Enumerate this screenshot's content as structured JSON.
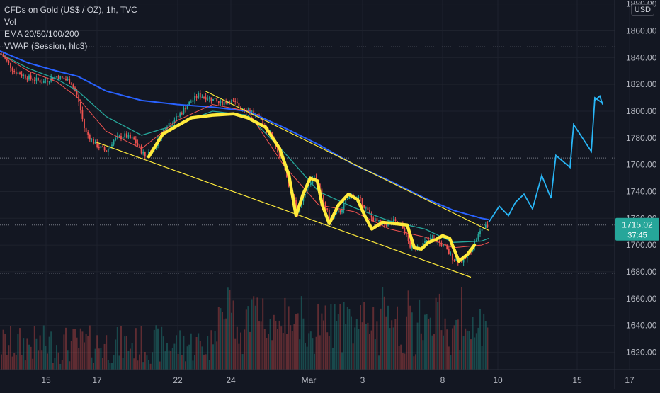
{
  "legend": {
    "symbol": "CFDs on Gold (US$ / OZ), 1h, TVC",
    "volume": "Vol",
    "ema": "EMA 20/50/100/200",
    "vwap": "VWAP (Session, hlc3)"
  },
  "currency_button": "USD",
  "price_tag": {
    "price": "1715.02",
    "countdown": "37:45",
    "color": "#26a69a"
  },
  "colors": {
    "background": "#131722",
    "up": "#26a69a",
    "down": "#ef5350",
    "yellow": "#ffeb3b",
    "blue_line": "#2962ff",
    "teal_line": "#26a69a",
    "red_line": "#ef5350",
    "projection": "#29b6f6"
  },
  "chart_data": {
    "type": "line",
    "y_ticks": [
      1620,
      1640,
      1660,
      1680,
      1700,
      1720,
      1740,
      1760,
      1780,
      1800,
      1820,
      1840,
      1860,
      1880
    ],
    "ylim": [
      1607,
      1883
    ],
    "x_ticks": [
      "15",
      "17",
      "22",
      "24",
      "Mar",
      "3",
      "8",
      "10",
      "15",
      "17"
    ],
    "grid": true,
    "horizontal_levels": [
      1848,
      1765,
      1715,
      1679
    ],
    "series": [
      {
        "values": [
          [
            0,
            1844
          ],
          [
            20,
            1830
          ],
          [
            40,
            1825
          ],
          [
            60,
            1822
          ],
          [
            80,
            1826
          ],
          [
            100,
            1822
          ],
          [
            110,
            1810
          ],
          [
            120,
            1785
          ],
          [
            135,
            1775
          ],
          [
            150,
            1770
          ],
          [
            160,
            1778
          ],
          [
            175,
            1782
          ],
          [
            190,
            1778
          ],
          [
            205,
            1766
          ],
          [
            220,
            1775
          ],
          [
            235,
            1790
          ],
          [
            250,
            1795
          ],
          [
            265,
            1805
          ],
          [
            280,
            1812
          ],
          [
            295,
            1810
          ],
          [
            310,
            1806
          ],
          [
            325,
            1808
          ],
          [
            340,
            1803
          ],
          [
            355,
            1800
          ],
          [
            370,
            1792
          ],
          [
            385,
            1780
          ],
          [
            400,
            1760
          ],
          [
            410,
            1740
          ],
          [
            420,
            1725
          ],
          [
            435,
            1745
          ],
          [
            445,
            1752
          ],
          [
            455,
            1735
          ],
          [
            465,
            1720
          ],
          [
            480,
            1725
          ],
          [
            495,
            1738
          ],
          [
            510,
            1733
          ],
          [
            525,
            1720
          ],
          [
            540,
            1715
          ],
          [
            555,
            1718
          ],
          [
            570,
            1712
          ],
          [
            580,
            1698
          ],
          [
            595,
            1700
          ],
          [
            610,
            1705
          ],
          [
            625,
            1700
          ],
          [
            640,
            1690
          ],
          [
            655,
            1688
          ],
          [
            670,
            1702
          ],
          [
            680,
            1712
          ],
          [
            690,
            1715
          ]
        ]
      },
      {
        "values": [
          [
            0,
            1845
          ],
          [
            40,
            1836
          ],
          [
            80,
            1830
          ],
          [
            110,
            1826
          ],
          [
            150,
            1815
          ],
          [
            200,
            1808
          ],
          [
            250,
            1805
          ],
          [
            300,
            1803
          ],
          [
            350,
            1800
          ],
          [
            400,
            1788
          ],
          [
            450,
            1775
          ],
          [
            500,
            1760
          ],
          [
            550,
            1748
          ],
          [
            600,
            1735
          ],
          [
            640,
            1726
          ],
          [
            680,
            1720
          ],
          [
            690,
            1719
          ]
        ]
      },
      {
        "values": [
          [
            0,
            1843
          ],
          [
            40,
            1832
          ],
          [
            80,
            1824
          ],
          [
            110,
            1815
          ],
          [
            150,
            1796
          ],
          [
            200,
            1782
          ],
          [
            250,
            1790
          ],
          [
            300,
            1800
          ],
          [
            350,
            1797
          ],
          [
            400,
            1770
          ],
          [
            450,
            1740
          ],
          [
            500,
            1728
          ],
          [
            550,
            1718
          ],
          [
            600,
            1712
          ],
          [
            640,
            1702
          ],
          [
            680,
            1703
          ],
          [
            690,
            1705
          ]
        ]
      },
      {
        "values": [
          [
            0,
            1843
          ],
          [
            40,
            1830
          ],
          [
            80,
            1822
          ],
          [
            110,
            1810
          ],
          [
            150,
            1785
          ],
          [
            200,
            1772
          ],
          [
            250,
            1793
          ],
          [
            300,
            1805
          ],
          [
            350,
            1800
          ],
          [
            400,
            1760
          ],
          [
            450,
            1730
          ],
          [
            500,
            1725
          ],
          [
            550,
            1712
          ],
          [
            600,
            1706
          ],
          [
            640,
            1698
          ],
          [
            680,
            1700
          ],
          [
            690,
            1702
          ]
        ]
      }
    ],
    "trendlines": [
      {
        "from": [
          135,
          1777
        ],
        "to": [
          665,
          1676
        ]
      },
      {
        "from": [
          290,
          1815
        ],
        "to": [
          690,
          1711
        ]
      }
    ],
    "path_drawing": [
      [
        210,
        1766
      ],
      [
        230,
        1783
      ],
      [
        270,
        1795
      ],
      [
        300,
        1797
      ],
      [
        330,
        1798
      ],
      [
        350,
        1795
      ],
      [
        375,
        1788
      ],
      [
        395,
        1772
      ],
      [
        408,
        1752
      ],
      [
        418,
        1722
      ],
      [
        428,
        1738
      ],
      [
        438,
        1750
      ],
      [
        448,
        1748
      ],
      [
        455,
        1730
      ],
      [
        465,
        1716
      ],
      [
        478,
        1730
      ],
      [
        492,
        1738
      ],
      [
        505,
        1734
      ],
      [
        515,
        1722
      ],
      [
        525,
        1712
      ],
      [
        540,
        1717
      ],
      [
        558,
        1716
      ],
      [
        575,
        1715
      ],
      [
        585,
        1698
      ],
      [
        595,
        1697
      ],
      [
        605,
        1702
      ],
      [
        615,
        1704
      ],
      [
        625,
        1707
      ],
      [
        635,
        1705
      ],
      [
        648,
        1688
      ],
      [
        660,
        1693
      ],
      [
        670,
        1700
      ]
    ],
    "projection": [
      [
        690,
        1717
      ],
      [
        705,
        1729
      ],
      [
        718,
        1722
      ],
      [
        728,
        1732
      ],
      [
        740,
        1738
      ],
      [
        752,
        1727
      ],
      [
        765,
        1752
      ],
      [
        778,
        1735
      ],
      [
        785,
        1767
      ],
      [
        805,
        1758
      ],
      [
        810,
        1790
      ],
      [
        835,
        1770
      ],
      [
        840,
        1810
      ],
      [
        851,
        1806
      ]
    ]
  }
}
